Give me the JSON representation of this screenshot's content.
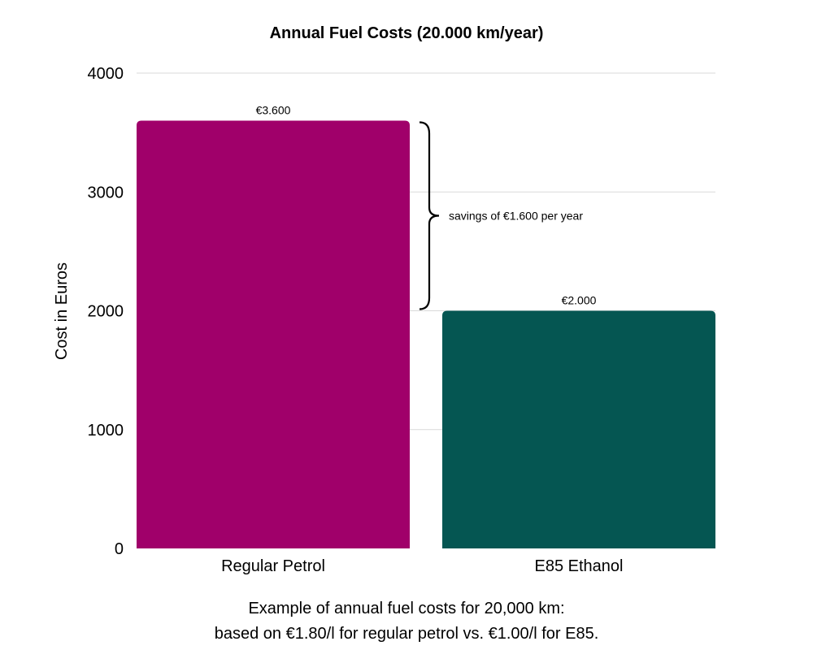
{
  "chart_data": {
    "type": "bar",
    "title": "Annual Fuel Costs (20.000 km/year)",
    "xlabel": "",
    "ylabel": "Cost in Euros",
    "categories": [
      "Regular Petrol",
      "E85 Ethanol"
    ],
    "values": [
      3600,
      2000
    ],
    "data_labels": [
      "€3.600",
      "€2.000"
    ],
    "colors": [
      "#a0006a",
      "#055652"
    ],
    "ylim": [
      0,
      4000
    ],
    "yticks": [
      0,
      1000,
      2000,
      3000,
      4000
    ],
    "grid": true,
    "annotation": {
      "text": "savings of €1.600 per year",
      "from": 3600,
      "to": 2000
    }
  },
  "caption": {
    "line1": "Example of annual fuel costs for 20,000 km:",
    "line2": "based on €1.80/l for regular petrol vs. €1.00/l for E85."
  }
}
